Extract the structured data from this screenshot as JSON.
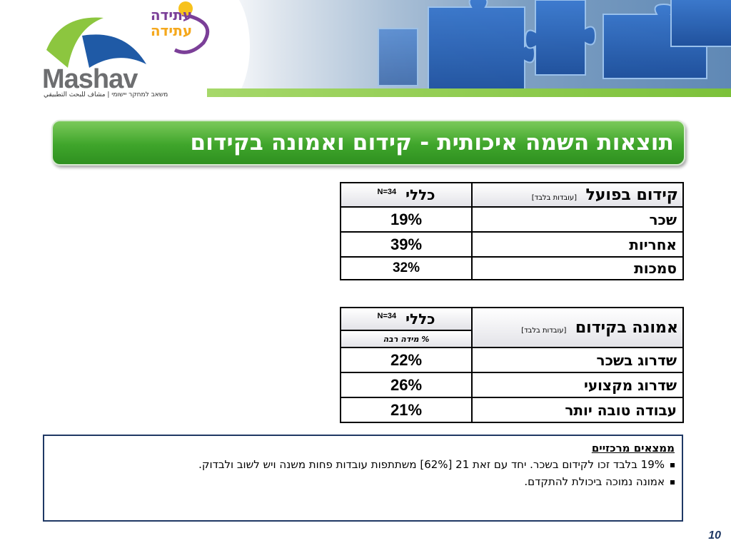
{
  "header": {
    "atida_line1": "עתידה",
    "atida_line2": "עתידה",
    "logo_word": "Mashav",
    "logo_subtitle": "משאב למחקר יישומי | مشاف للبحث التطبيقي"
  },
  "title": "תוצאות השמה איכותית  - קידום ואמונה בקידום",
  "table1": {
    "heading": "קידום בפועל",
    "heading_note": "[עובדות בלבד]",
    "col_label": "כללי",
    "n_label": "N=34",
    "rows": [
      {
        "label": "שכר",
        "value": "19%"
      },
      {
        "label": "אחריות",
        "value": "39%"
      },
      {
        "label": "סמכות",
        "value": "32%"
      }
    ]
  },
  "table2": {
    "heading": "אמונה בקידום",
    "heading_note": "[עובדות בלבד]",
    "col_label": "כללי",
    "n_label": "N=34",
    "sub_label": "% מידה רבה",
    "rows": [
      {
        "label": "שדרוג בשכר",
        "value": "22%"
      },
      {
        "label": "שדרוג מקצועי",
        "value": "26%"
      },
      {
        "label": "עבודה טובה יותר",
        "value": "21%"
      }
    ]
  },
  "findings": {
    "title": "ממצאים מרכזיים",
    "items": [
      "19% בלבד זכו לקידום בשכר. יחד עם זאת 21 [62%] משתתפות עובדות פחות משנה ויש לשוב ולבדוק.",
      "אמונה נמוכה ביכולת להתקדם."
    ]
  },
  "page_number": "10",
  "colors": {
    "title_green": "#3fa52b",
    "border_navy": "#1f3864",
    "logo_purple": "#7b3f98",
    "logo_orange": "#f5a81c"
  }
}
